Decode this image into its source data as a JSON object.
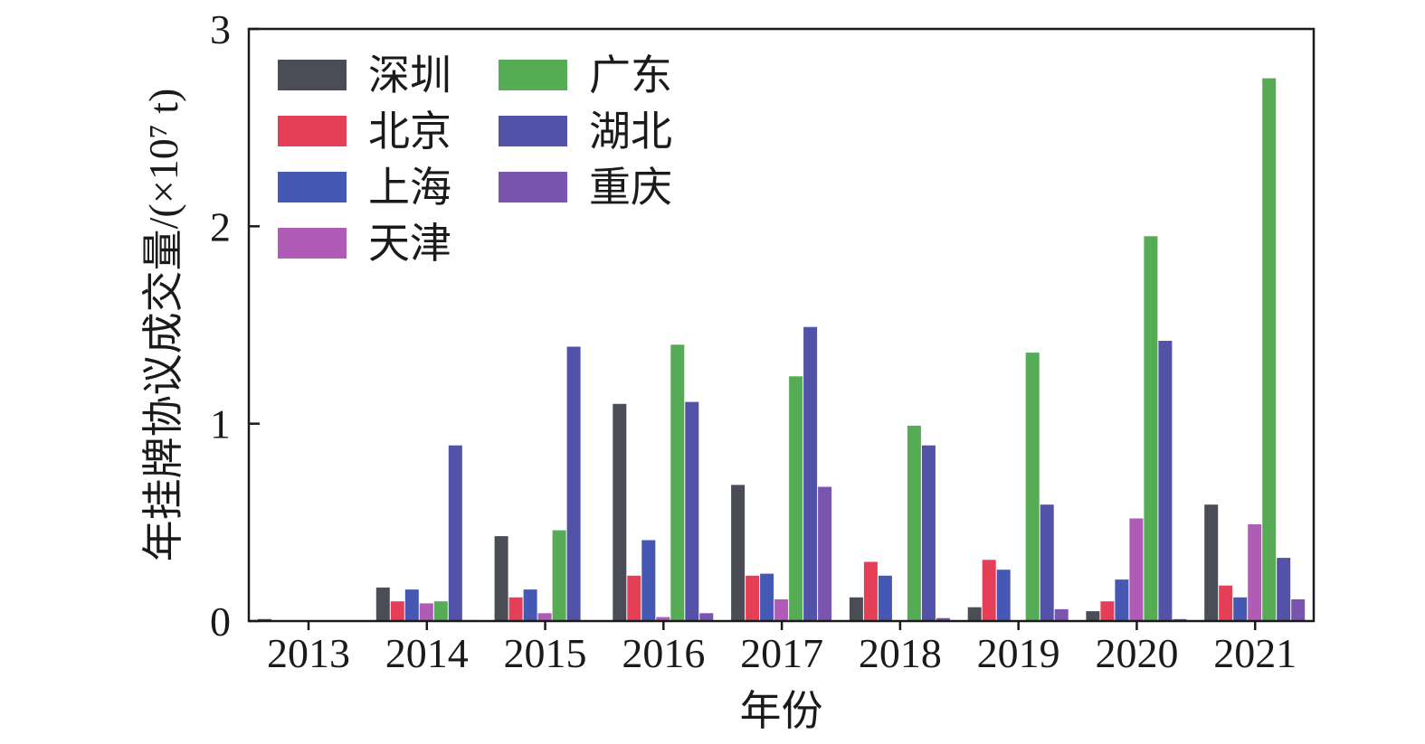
{
  "chart_data": {
    "type": "bar",
    "title": "",
    "xlabel": "年份",
    "ylabel": "年挂牌协议成交量/(×10⁷ t)",
    "ylim": [
      0,
      3
    ],
    "yticks": [
      0,
      1,
      2,
      3
    ],
    "grid": false,
    "legend_position": "top-left",
    "categories": [
      "2013",
      "2014",
      "2015",
      "2016",
      "2017",
      "2018",
      "2019",
      "2020",
      "2021"
    ],
    "series": [
      {
        "name": "深圳",
        "color": "#4a4d55",
        "values": [
          0.01,
          0.17,
          0.43,
          1.1,
          0.69,
          0.12,
          0.07,
          0.05,
          0.59
        ]
      },
      {
        "name": "北京",
        "color": "#e53f57",
        "values": [
          0,
          0.1,
          0.12,
          0.23,
          0.23,
          0.3,
          0.31,
          0.1,
          0.18
        ]
      },
      {
        "name": "上海",
        "color": "#4558b3",
        "values": [
          0,
          0.16,
          0.16,
          0.41,
          0.24,
          0.23,
          0.26,
          0.21,
          0.12
        ]
      },
      {
        "name": "天津",
        "color": "#b05bb5",
        "values": [
          0,
          0.09,
          0.04,
          0.02,
          0.11,
          0,
          0,
          0.52,
          0.49
        ]
      },
      {
        "name": "广东",
        "color": "#56ab55",
        "values": [
          0,
          0.1,
          0.46,
          1.4,
          1.24,
          0.99,
          1.36,
          1.95,
          2.75
        ]
      },
      {
        "name": "湖北",
        "color": "#5252a8",
        "values": [
          0,
          0.89,
          1.39,
          1.11,
          1.49,
          0.89,
          0.59,
          1.42,
          0.32
        ]
      },
      {
        "name": "重庆",
        "color": "#7a55b0",
        "values": [
          0,
          0.005,
          0,
          0.04,
          0.68,
          0.015,
          0.06,
          0.01,
          0.11
        ]
      }
    ]
  }
}
